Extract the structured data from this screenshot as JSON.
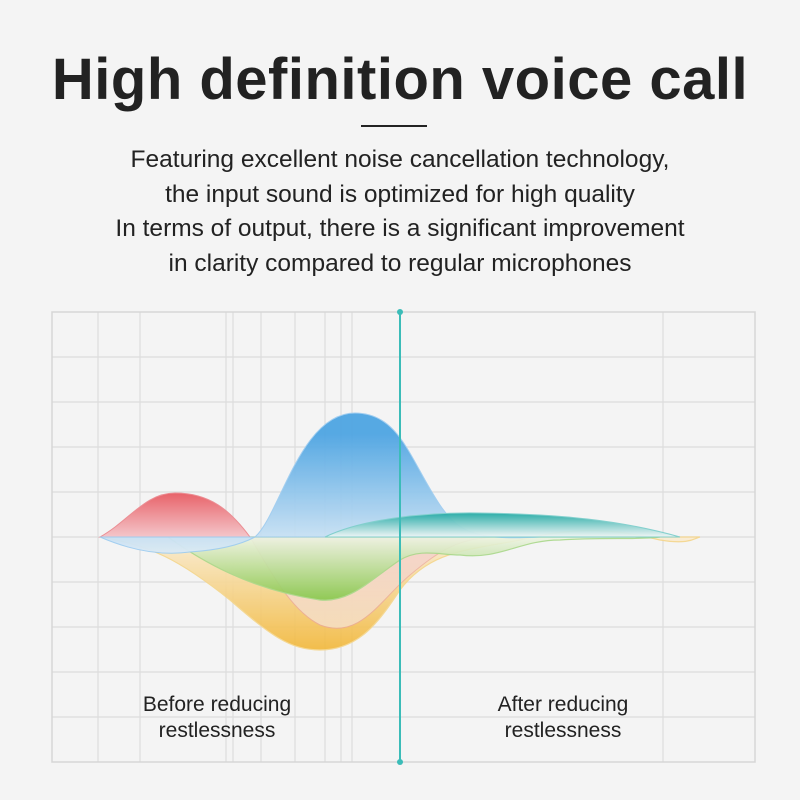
{
  "header": {
    "title": "High definition voice call",
    "description_lines": [
      "Featuring excellent noise cancellation technology,",
      "the input sound is optimized for high quality",
      "In terms of output, there is a significant improvement",
      "in clarity compared to regular microphones"
    ]
  },
  "graph": {
    "before_label": [
      "Before reducing",
      "restlessness"
    ],
    "after_label": [
      "After reducing",
      "restlessness"
    ],
    "colors": {
      "divider": "#3bbcb8",
      "red": "#e8636a",
      "blue": "#4ea5e3",
      "teal": "#22aaa5",
      "green": "#86c84a",
      "yellow": "#f2b83a",
      "grid": "#dcdcdc"
    }
  }
}
